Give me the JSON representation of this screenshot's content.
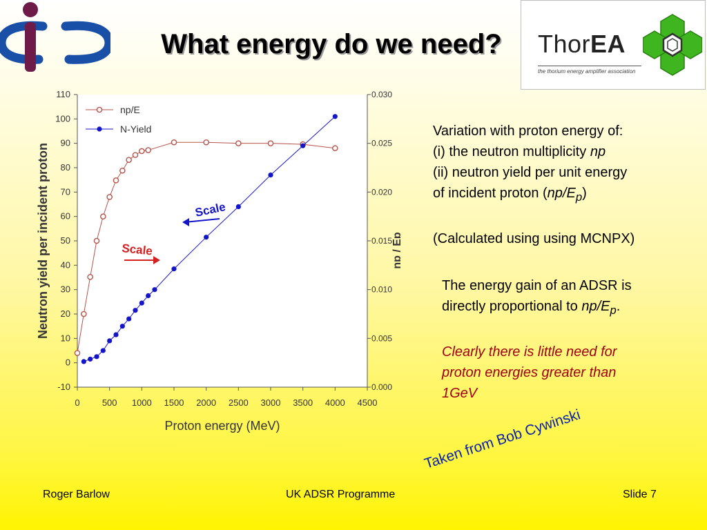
{
  "slide": {
    "title": "What energy do we need?",
    "footer": {
      "author": "Roger Barlow",
      "programme": "UK ADSR Programme",
      "slide_label": "Slide 7"
    },
    "logos": {
      "left": "iop-style-logo",
      "thorea_word_regular": "Thor",
      "thorea_word_bold": "EA",
      "thorea_tagline": "the thorium energy amplifier association"
    },
    "text": {
      "line1": "Variation with proton energy of:",
      "line2_prefix": "(i) the neutron multiplicity ",
      "line2_italic": "np",
      "line3": "(ii)  neutron yield per unit energy",
      "line4_prefix": "of incident proton (",
      "line4_italic": "np/E",
      "line4_sub": "p",
      "line4_suffix": ")",
      "line5": "(Calculated using using MCNPX)",
      "gain1": "The energy gain of an ADSR is",
      "gain2_prefix": "directly proportional to ",
      "gain2_italic": "np/E",
      "gain2_sub": "p",
      "gain2_suffix": ".",
      "conclusion1": "Clearly there is little need for",
      "conclusion2": "proton energies greater than",
      "conclusion3": "1GeV",
      "credit": "Taken from Bob Cywinski"
    }
  },
  "chart_data": {
    "type": "scatter",
    "xlabel": "Proton energy (MeV)",
    "ylabel": "Neutron yield per incident proton",
    "y2label": "np / Ep",
    "xlim": [
      0,
      4500
    ],
    "ylim": [
      -10,
      110
    ],
    "y2lim": [
      0.0,
      0.03
    ],
    "xticks": [
      "0",
      "500",
      "1000",
      "1500",
      "2000",
      "2500",
      "3000",
      "3500",
      "4000",
      "4500"
    ],
    "yticks": [
      "-10",
      "0",
      "10",
      "20",
      "30",
      "40",
      "50",
      "60",
      "70",
      "80",
      "90",
      "100",
      "110"
    ],
    "y2ticks": [
      "0.000",
      "0.005",
      "0.010",
      "0.015",
      "0.020",
      "0.025",
      "0.030"
    ],
    "legend_position": "top-left",
    "series": [
      {
        "name": "np/E",
        "axis": "right",
        "color": "#b5524a",
        "marker": "open-circle",
        "points": [
          [
            0,
            0.0035
          ],
          [
            100,
            0.0075
          ],
          [
            200,
            0.0113
          ],
          [
            300,
            0.015
          ],
          [
            400,
            0.0175
          ],
          [
            500,
            0.0195
          ],
          [
            600,
            0.0212
          ],
          [
            700,
            0.0222
          ],
          [
            800,
            0.0233
          ],
          [
            900,
            0.0238
          ],
          [
            1000,
            0.0242
          ],
          [
            1100,
            0.0243
          ],
          [
            1500,
            0.0251
          ],
          [
            2000,
            0.0251
          ],
          [
            2500,
            0.025
          ],
          [
            3000,
            0.025
          ],
          [
            3500,
            0.0249
          ],
          [
            4000,
            0.0245
          ]
        ]
      },
      {
        "name": "N-Yield",
        "axis": "left",
        "color": "#1515c8",
        "marker": "filled-circle",
        "points": [
          [
            100,
            0.5
          ],
          [
            200,
            1.5
          ],
          [
            300,
            2.5
          ],
          [
            400,
            5
          ],
          [
            500,
            9
          ],
          [
            600,
            11.5
          ],
          [
            700,
            15
          ],
          [
            800,
            18
          ],
          [
            900,
            21.5
          ],
          [
            1000,
            24.5
          ],
          [
            1100,
            27.5
          ],
          [
            1200,
            30
          ],
          [
            1500,
            38.5
          ],
          [
            2000,
            51.5
          ],
          [
            2500,
            64
          ],
          [
            3000,
            77
          ],
          [
            3500,
            89
          ],
          [
            4000,
            101
          ]
        ]
      }
    ],
    "annotations": [
      {
        "text": "Scale",
        "color": "#1515c8",
        "arrow": "left"
      },
      {
        "text": "Scale",
        "color": "#d42020",
        "arrow": "right"
      }
    ]
  }
}
